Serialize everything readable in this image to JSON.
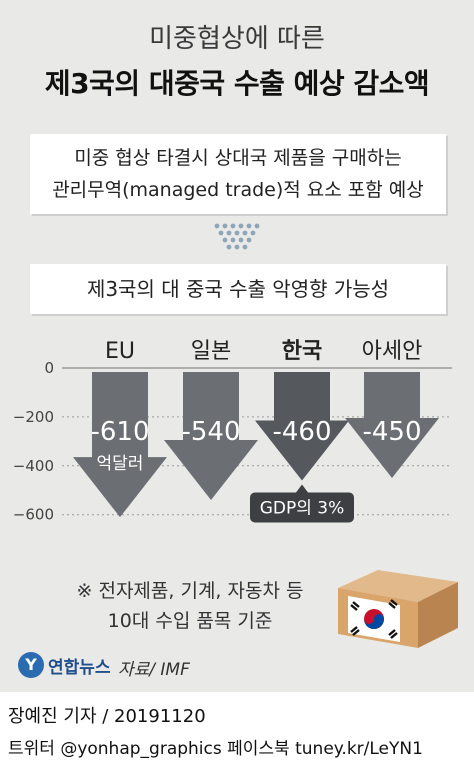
{
  "header": {
    "subtitle": "미중협상에 따른",
    "title": "제3국의 대중국 수출 예상 감소액"
  },
  "info": {
    "line1": "미중 협상 타결시 상대국 제품을 구매하는",
    "line2": "관리무역(managed trade)적 요소 포함 예상"
  },
  "chart_data": {
    "type": "bar",
    "title": "제3국의 대 중국 수출 악영향 가능성",
    "categories": [
      "EU",
      "일본",
      "한국",
      "아세안"
    ],
    "values": [
      -610,
      -540,
      -460,
      -450
    ],
    "value_labels": [
      "-610",
      "-540",
      "-460",
      "-450"
    ],
    "unit_label": "억달러",
    "yticks": [
      0,
      -200,
      -400,
      -600
    ],
    "ylim": [
      -650,
      0
    ],
    "grid": true,
    "highlight_category": "한국",
    "annotation": "GDP의 3%",
    "colors": {
      "bar": "#6b6e73",
      "highlight_bar": "#55585c",
      "grid": "#9a9a9a"
    }
  },
  "note": {
    "line1": "※ 전자제품, 기계, 자동차 등",
    "line2": "10대 수입 품목 기준"
  },
  "footer": {
    "logo_mark": "Y",
    "logo_text": "연합뉴스",
    "source": "자료/ IMF",
    "reporter": "장예진 기자 / 20191120",
    "social": "트위터 @yonhap_graphics  페이스북 tuney.kr/LeYN1"
  }
}
